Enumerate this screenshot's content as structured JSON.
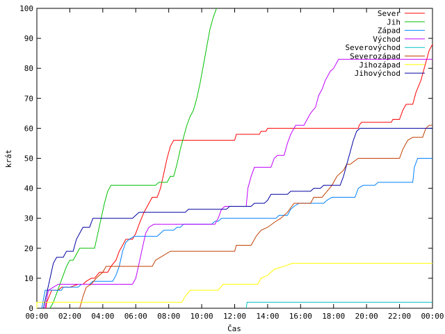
{
  "chart_data": {
    "type": "line",
    "xlabel": "Čas",
    "ylabel": "krát",
    "xlim": [
      0,
      24
    ],
    "ylim": [
      0,
      100
    ],
    "x_ticks": [
      {
        "value": 0,
        "label": "00:00"
      },
      {
        "value": 2,
        "label": "02:00"
      },
      {
        "value": 4,
        "label": "04:00"
      },
      {
        "value": 6,
        "label": "06:00"
      },
      {
        "value": 8,
        "label": "08:00"
      },
      {
        "value": 10,
        "label": "10:00"
      },
      {
        "value": 12,
        "label": "12:00"
      },
      {
        "value": 14,
        "label": "14:00"
      },
      {
        "value": 16,
        "label": "16:00"
      },
      {
        "value": 18,
        "label": "18:00"
      },
      {
        "value": 20,
        "label": "20:00"
      },
      {
        "value": 22,
        "label": "22:00"
      },
      {
        "value": 24,
        "label": "00:00"
      }
    ],
    "y_ticks": [
      0,
      10,
      20,
      30,
      40,
      50,
      60,
      70,
      80,
      90,
      100
    ],
    "grid": false,
    "legend_position": "top-right",
    "series": [
      {
        "name": "Sever",
        "color": "#ff0000",
        "points": [
          [
            0.55,
            0
          ],
          [
            0.6,
            2
          ],
          [
            0.75,
            4
          ],
          [
            0.9,
            6
          ],
          [
            1.3,
            6
          ],
          [
            1.5,
            7
          ],
          [
            2.0,
            7
          ],
          [
            2.5,
            8
          ],
          [
            2.8,
            8
          ],
          [
            3.0,
            9
          ],
          [
            3.3,
            10
          ],
          [
            3.5,
            10
          ],
          [
            3.8,
            12
          ],
          [
            4.3,
            12
          ],
          [
            4.5,
            14
          ],
          [
            4.8,
            16
          ],
          [
            5.0,
            19
          ],
          [
            5.2,
            21
          ],
          [
            5.4,
            23
          ],
          [
            5.8,
            23
          ],
          [
            6.0,
            25
          ],
          [
            6.2,
            28
          ],
          [
            6.5,
            32
          ],
          [
            6.8,
            35
          ],
          [
            7.0,
            37
          ],
          [
            7.3,
            37
          ],
          [
            7.5,
            40
          ],
          [
            7.7,
            45
          ],
          [
            7.9,
            50
          ],
          [
            8.1,
            54
          ],
          [
            8.3,
            56
          ],
          [
            12.0,
            56
          ],
          [
            12.05,
            57
          ],
          [
            12.1,
            58
          ],
          [
            13.5,
            58
          ],
          [
            13.6,
            59
          ],
          [
            13.9,
            59
          ],
          [
            14.0,
            60
          ],
          [
            19.5,
            60
          ],
          [
            19.55,
            61
          ],
          [
            19.7,
            62
          ],
          [
            21.5,
            62
          ],
          [
            21.6,
            63
          ],
          [
            22.0,
            63
          ],
          [
            22.2,
            66
          ],
          [
            22.4,
            68
          ],
          [
            22.8,
            68
          ],
          [
            23.0,
            72
          ],
          [
            23.3,
            76
          ],
          [
            23.5,
            80
          ],
          [
            23.8,
            86
          ],
          [
            24.0,
            88
          ]
        ]
      },
      {
        "name": "Jih",
        "color": "#00c000",
        "points": [
          [
            0.8,
            0
          ],
          [
            1.0,
            2
          ],
          [
            1.2,
            5
          ],
          [
            1.4,
            8
          ],
          [
            1.6,
            11
          ],
          [
            1.8,
            14
          ],
          [
            2.0,
            16
          ],
          [
            2.2,
            16
          ],
          [
            2.4,
            18
          ],
          [
            2.6,
            20
          ],
          [
            3.5,
            20
          ],
          [
            3.7,
            25
          ],
          [
            3.9,
            30
          ],
          [
            4.1,
            35
          ],
          [
            4.3,
            39
          ],
          [
            4.5,
            41
          ],
          [
            7.2,
            41
          ],
          [
            7.4,
            42
          ],
          [
            7.9,
            42
          ],
          [
            8.1,
            44
          ],
          [
            8.3,
            44
          ],
          [
            8.5,
            48
          ],
          [
            8.7,
            53
          ],
          [
            8.9,
            57
          ],
          [
            9.1,
            61
          ],
          [
            9.3,
            64
          ],
          [
            9.5,
            66
          ],
          [
            9.7,
            70
          ],
          [
            9.9,
            75
          ],
          [
            10.1,
            81
          ],
          [
            10.3,
            87
          ],
          [
            10.5,
            93
          ],
          [
            10.7,
            97
          ],
          [
            10.9,
            100
          ]
        ]
      },
      {
        "name": "Západ",
        "color": "#0080ff",
        "points": [
          [
            0.3,
            0
          ],
          [
            0.4,
            3
          ],
          [
            0.5,
            6
          ],
          [
            1.5,
            6
          ],
          [
            1.6,
            7
          ],
          [
            2.5,
            7
          ],
          [
            2.7,
            8
          ],
          [
            3.2,
            8
          ],
          [
            3.4,
            9
          ],
          [
            4.6,
            9
          ],
          [
            4.8,
            11
          ],
          [
            5.0,
            14
          ],
          [
            5.2,
            19
          ],
          [
            5.4,
            22
          ],
          [
            5.6,
            23
          ],
          [
            5.9,
            24
          ],
          [
            7.3,
            24
          ],
          [
            7.5,
            25
          ],
          [
            7.7,
            26
          ],
          [
            8.3,
            26
          ],
          [
            8.5,
            27
          ],
          [
            8.7,
            27
          ],
          [
            8.9,
            28
          ],
          [
            10.6,
            28
          ],
          [
            10.8,
            29
          ],
          [
            11.0,
            29
          ],
          [
            11.2,
            30
          ],
          [
            14.5,
            30
          ],
          [
            14.7,
            31
          ],
          [
            15.2,
            31
          ],
          [
            15.4,
            33
          ],
          [
            15.6,
            34
          ],
          [
            15.9,
            35
          ],
          [
            17.4,
            35
          ],
          [
            17.6,
            36
          ],
          [
            17.9,
            37
          ],
          [
            19.3,
            37
          ],
          [
            19.5,
            40
          ],
          [
            19.8,
            41
          ],
          [
            20.5,
            41
          ],
          [
            20.7,
            42
          ],
          [
            22.8,
            42
          ],
          [
            22.9,
            47
          ],
          [
            23.1,
            50
          ],
          [
            24.0,
            50
          ]
        ]
      },
      {
        "name": "Východ",
        "color": "#c000ff",
        "points": [
          [
            0.5,
            0
          ],
          [
            0.7,
            6
          ],
          [
            1.0,
            7
          ],
          [
            1.3,
            8
          ],
          [
            5.8,
            8
          ],
          [
            6.0,
            10
          ],
          [
            6.2,
            15
          ],
          [
            6.4,
            20
          ],
          [
            6.6,
            25
          ],
          [
            6.8,
            27
          ],
          [
            7.1,
            28
          ],
          [
            10.8,
            28
          ],
          [
            11.0,
            30
          ],
          [
            11.2,
            33
          ],
          [
            11.4,
            34
          ],
          [
            12.7,
            34
          ],
          [
            12.8,
            40
          ],
          [
            13.0,
            44
          ],
          [
            13.2,
            47
          ],
          [
            14.2,
            47
          ],
          [
            14.4,
            50
          ],
          [
            14.6,
            51
          ],
          [
            15.0,
            51
          ],
          [
            15.2,
            55
          ],
          [
            15.4,
            58
          ],
          [
            15.7,
            61
          ],
          [
            16.2,
            61
          ],
          [
            16.4,
            63
          ],
          [
            16.6,
            65
          ],
          [
            16.9,
            67
          ],
          [
            17.1,
            71
          ],
          [
            17.3,
            73
          ],
          [
            17.5,
            76
          ],
          [
            17.8,
            79
          ],
          [
            18.0,
            80
          ],
          [
            18.3,
            83
          ],
          [
            24.0,
            83
          ]
        ]
      },
      {
        "name": "Severovýchod",
        "color": "#00c0c0",
        "points": [
          [
            12.7,
            0
          ],
          [
            12.75,
            2
          ],
          [
            24.0,
            2
          ]
        ]
      },
      {
        "name": "Severozápad",
        "color": "#c04000",
        "points": [
          [
            2.6,
            0
          ],
          [
            2.8,
            4
          ],
          [
            3.0,
            7
          ],
          [
            3.3,
            8
          ],
          [
            3.6,
            10
          ],
          [
            4.0,
            12
          ],
          [
            4.2,
            14
          ],
          [
            7.0,
            14
          ],
          [
            7.2,
            16
          ],
          [
            7.5,
            17
          ],
          [
            8.1,
            19
          ],
          [
            12.0,
            19
          ],
          [
            12.1,
            21
          ],
          [
            13.0,
            21
          ],
          [
            13.3,
            24
          ],
          [
            13.6,
            26
          ],
          [
            14.0,
            27
          ],
          [
            14.5,
            29
          ],
          [
            14.8,
            30
          ],
          [
            15.2,
            32
          ],
          [
            15.6,
            35
          ],
          [
            16.6,
            35
          ],
          [
            16.8,
            37
          ],
          [
            17.3,
            37
          ],
          [
            17.6,
            39
          ],
          [
            17.9,
            41
          ],
          [
            18.2,
            44
          ],
          [
            18.6,
            46
          ],
          [
            18.8,
            48
          ],
          [
            19.0,
            48
          ],
          [
            19.5,
            50
          ],
          [
            22.0,
            50
          ],
          [
            22.2,
            53
          ],
          [
            22.5,
            56
          ],
          [
            22.8,
            57
          ],
          [
            23.4,
            57
          ],
          [
            23.6,
            60
          ],
          [
            23.8,
            61
          ],
          [
            24.0,
            61
          ]
        ]
      },
      {
        "name": "Jihozápad",
        "color": "#ffff00",
        "points": [
          [
            0,
            0
          ],
          [
            0,
            2
          ],
          [
            8.8,
            2
          ],
          [
            9.0,
            4
          ],
          [
            9.3,
            6
          ],
          [
            11.0,
            6
          ],
          [
            11.3,
            8
          ],
          [
            13.4,
            8
          ],
          [
            13.6,
            10
          ],
          [
            14.0,
            11
          ],
          [
            14.4,
            13
          ],
          [
            15.0,
            14
          ],
          [
            15.5,
            15
          ],
          [
            24.0,
            15
          ]
        ]
      },
      {
        "name": "Jihovýchod",
        "color": "#0000a0",
        "points": [
          [
            0.4,
            0
          ],
          [
            0.6,
            5
          ],
          [
            0.8,
            10
          ],
          [
            1.0,
            15
          ],
          [
            1.2,
            17
          ],
          [
            1.6,
            17
          ],
          [
            1.8,
            19
          ],
          [
            2.2,
            19
          ],
          [
            2.4,
            23
          ],
          [
            2.6,
            25
          ],
          [
            2.8,
            27
          ],
          [
            3.2,
            27
          ],
          [
            3.4,
            30
          ],
          [
            5.8,
            30
          ],
          [
            6.0,
            31
          ],
          [
            6.2,
            32
          ],
          [
            9.0,
            32
          ],
          [
            9.2,
            33
          ],
          [
            11.5,
            33
          ],
          [
            11.7,
            34
          ],
          [
            13.0,
            34
          ],
          [
            13.2,
            35
          ],
          [
            13.8,
            35
          ],
          [
            14.0,
            36
          ],
          [
            14.2,
            38
          ],
          [
            15.2,
            38
          ],
          [
            15.4,
            39
          ],
          [
            16.6,
            39
          ],
          [
            16.8,
            40
          ],
          [
            17.2,
            40
          ],
          [
            17.4,
            41
          ],
          [
            18.4,
            41
          ],
          [
            18.6,
            44
          ],
          [
            18.8,
            48
          ],
          [
            19.0,
            52
          ],
          [
            19.2,
            56
          ],
          [
            19.4,
            59
          ],
          [
            19.6,
            60
          ],
          [
            24.0,
            60
          ]
        ]
      }
    ]
  }
}
